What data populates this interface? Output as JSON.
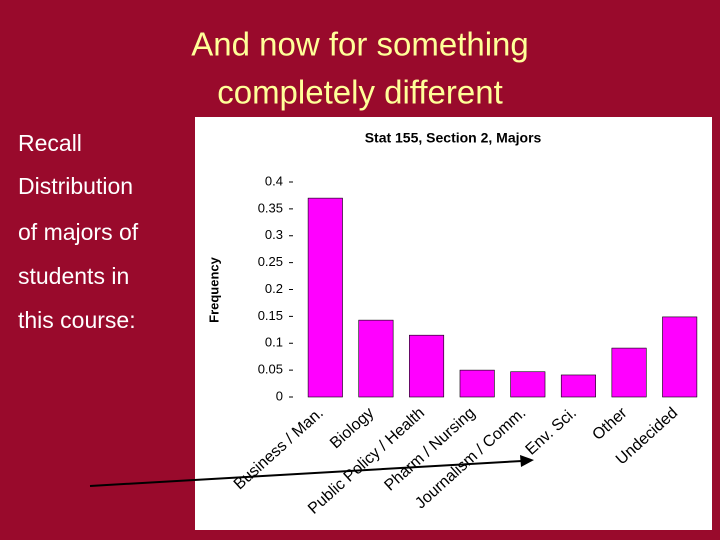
{
  "slide": {
    "title_lines": [
      "And now for something",
      "completely different"
    ],
    "body_lines": [
      "Recall",
      "Distribution",
      "of majors of",
      "students in",
      "this course:"
    ]
  },
  "chart_data": {
    "type": "bar",
    "title": "Stat 155, Section 2, Majors",
    "y_label": "Frequency",
    "categories": [
      "Business / Man.",
      "Biology",
      "Public Policy / Health",
      "Pharm / Nursing",
      "Journalism / Comm.",
      "Env. Sci.",
      "Other",
      "Undecided"
    ],
    "values": [
      0.37,
      0.143,
      0.115,
      0.05,
      0.047,
      0.041,
      0.091,
      0.149
    ],
    "color": "#ff00ff",
    "ylim": [
      0,
      0.4
    ],
    "yticks": [
      0,
      0.05,
      0.1,
      0.15,
      0.2,
      0.25,
      0.3,
      0.35,
      0.4
    ],
    "grid": false
  }
}
